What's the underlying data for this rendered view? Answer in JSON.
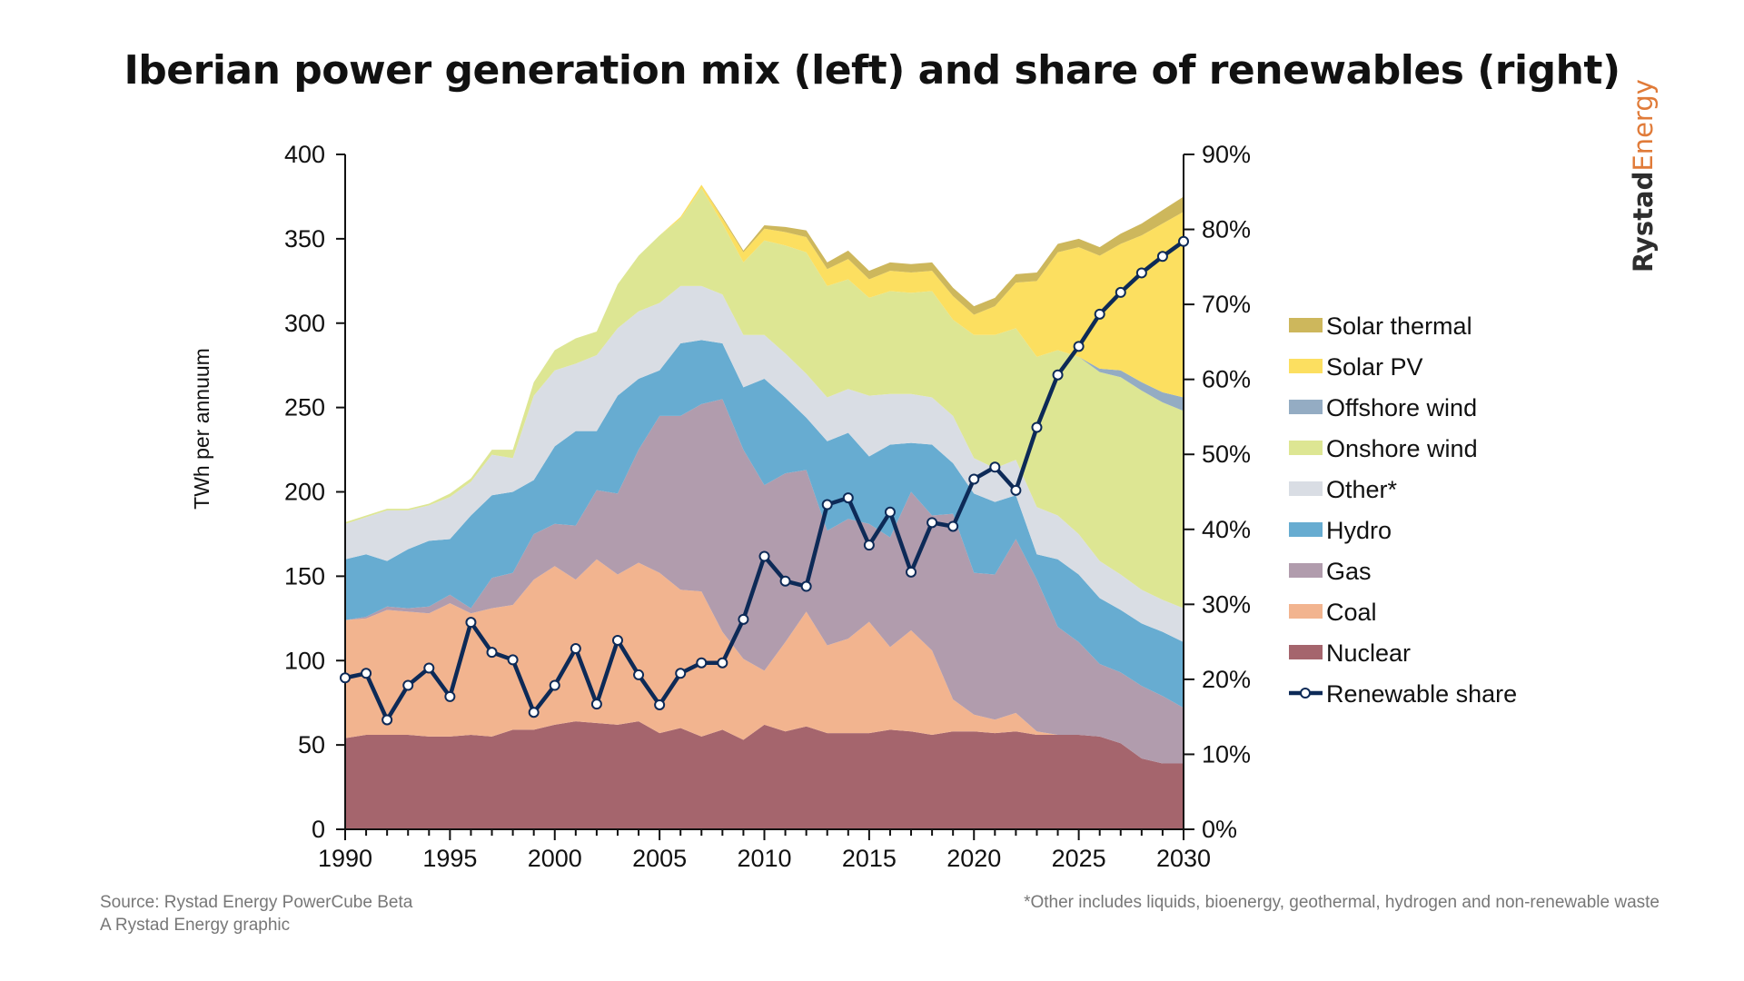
{
  "title": "Iberian power generation mix (left) and share of renewables (right)",
  "brand": {
    "part1": "Rystad",
    "part2": "Energy"
  },
  "footer": {
    "source": "Source: Rystad Energy PowerCube Beta",
    "credit": "A Rystad Energy graphic",
    "note": "*Other includes liquids, bioenergy, geothermal, hydrogen and non-renewable waste"
  },
  "chart_data": {
    "type": "area",
    "title": "Iberian power generation mix (left) and share of renewables (right)",
    "ylabel": "TWh per annuum",
    "xlabel": "",
    "x": [
      1990,
      1991,
      1992,
      1993,
      1994,
      1995,
      1996,
      1997,
      1998,
      1999,
      2000,
      2001,
      2002,
      2003,
      2004,
      2005,
      2006,
      2007,
      2008,
      2009,
      2010,
      2011,
      2012,
      2013,
      2014,
      2015,
      2016,
      2017,
      2018,
      2019,
      2020,
      2021,
      2022,
      2023,
      2024,
      2025,
      2026,
      2027,
      2028,
      2029,
      2030
    ],
    "xlim": [
      1990,
      2030
    ],
    "x_ticks": [
      1990,
      1995,
      2000,
      2005,
      2010,
      2015,
      2020,
      2025,
      2030
    ],
    "ylim": [
      0,
      400
    ],
    "y_ticks": [
      0,
      50,
      100,
      150,
      200,
      250,
      300,
      350,
      400
    ],
    "y2lim": [
      0,
      90
    ],
    "y2_ticks": [
      "0%",
      "10%",
      "20%",
      "30%",
      "40%",
      "50%",
      "60%",
      "70%",
      "80%",
      "90%"
    ],
    "legend_position": "right",
    "colors": {
      "Nuclear": "#a5656d",
      "Coal": "#f2b48f",
      "Gas": "#b19cad",
      "Hydro": "#67acd1",
      "Other*": "#d9dde4",
      "Onshore wind": "#dde693",
      "Offshore wind": "#94acc3",
      "Solar PV": "#fcdf60",
      "Solar thermal": "#cdb75c",
      "Renewable share": "#0d2a57"
    },
    "series": [
      {
        "name": "Nuclear",
        "values": [
          54,
          56,
          56,
          56,
          55,
          55,
          56,
          55,
          59,
          59,
          62,
          64,
          63,
          62,
          64,
          57,
          60,
          55,
          59,
          53,
          62,
          58,
          61,
          57,
          57,
          57,
          59,
          58,
          56,
          58,
          58,
          57,
          58,
          56,
          56,
          56,
          55,
          51,
          42,
          39,
          39
        ]
      },
      {
        "name": "Coal",
        "values": [
          70,
          69,
          74,
          73,
          73,
          79,
          72,
          76,
          74,
          89,
          94,
          84,
          97,
          89,
          94,
          95,
          82,
          86,
          58,
          48,
          32,
          53,
          68,
          52,
          56,
          66,
          49,
          60,
          50,
          19,
          10,
          8,
          11,
          2,
          0,
          0,
          0,
          0,
          0,
          0,
          0
        ]
      },
      {
        "name": "Gas",
        "values": [
          0,
          1,
          2,
          2,
          4,
          5,
          3,
          18,
          19,
          27,
          25,
          32,
          41,
          48,
          67,
          93,
          103,
          111,
          138,
          124,
          110,
          100,
          84,
          68,
          71,
          58,
          65,
          82,
          80,
          110,
          84,
          86,
          103,
          90,
          64,
          55,
          43,
          42,
          43,
          40,
          33
        ]
      },
      {
        "name": "Hydro",
        "values": [
          36,
          37,
          27,
          35,
          39,
          33,
          55,
          49,
          48,
          32,
          46,
          56,
          35,
          58,
          42,
          27,
          43,
          38,
          33,
          37,
          63,
          45,
          31,
          53,
          51,
          40,
          55,
          29,
          42,
          30,
          47,
          43,
          26,
          15,
          40,
          40,
          39,
          37,
          37,
          38,
          39
        ]
      },
      {
        "name": "Other*",
        "values": [
          21,
          22,
          30,
          23,
          21,
          25,
          20,
          24,
          20,
          50,
          45,
          40,
          45,
          40,
          40,
          40,
          34,
          32,
          29,
          31,
          26,
          26,
          26,
          26,
          26,
          36,
          30,
          29,
          28,
          28,
          21,
          20,
          21,
          28,
          26,
          24,
          22,
          21,
          20,
          19,
          20
        ]
      },
      {
        "name": "Onshore wind",
        "values": [
          1,
          1,
          1,
          1,
          1,
          2,
          2,
          3,
          5,
          8,
          12,
          15,
          14,
          26,
          33,
          40,
          40,
          58,
          42,
          43,
          56,
          64,
          72,
          66,
          65,
          58,
          61,
          60,
          63,
          57,
          73,
          79,
          78,
          89,
          98,
          105,
          112,
          117,
          118,
          117,
          117
        ]
      },
      {
        "name": "Offshore wind",
        "values": [
          0,
          0,
          0,
          0,
          0,
          0,
          0,
          0,
          0,
          0,
          0,
          0,
          0,
          0,
          0,
          0,
          0,
          0,
          0,
          0,
          0,
          0,
          0,
          0,
          0,
          0,
          0,
          0,
          0,
          0,
          0,
          0,
          0,
          0,
          0,
          0,
          2,
          4,
          5,
          6,
          8
        ]
      },
      {
        "name": "Solar PV",
        "values": [
          0,
          0,
          0,
          0,
          0,
          0,
          0,
          0,
          0,
          0,
          0,
          0,
          0,
          0,
          0,
          0,
          1,
          2,
          3,
          6,
          7,
          8,
          9,
          10,
          12,
          11,
          12,
          12,
          12,
          14,
          12,
          17,
          27,
          45,
          58,
          65,
          67,
          75,
          87,
          100,
          110
        ]
      },
      {
        "name": "Solar thermal",
        "values": [
          0,
          0,
          0,
          0,
          0,
          0,
          0,
          0,
          0,
          0,
          0,
          0,
          0,
          0,
          0,
          0,
          0,
          0,
          1,
          1,
          2,
          3,
          4,
          4,
          5,
          5,
          5,
          5,
          5,
          5,
          5,
          5,
          5,
          5,
          5,
          5,
          5,
          6,
          7,
          8,
          9
        ]
      }
    ],
    "line_series": {
      "name": "Renewable share",
      "axis": "right",
      "values": [
        20.2,
        20.8,
        14.6,
        19.2,
        21.5,
        17.7,
        27.6,
        23.6,
        22.6,
        15.6,
        19.2,
        24.1,
        16.7,
        25.2,
        20.6,
        16.6,
        20.8,
        22.2,
        22.2,
        28.0,
        36.4,
        33.1,
        32.4,
        43.3,
        44.2,
        37.9,
        42.3,
        34.3,
        40.9,
        40.4,
        46.7,
        48.3,
        45.2,
        53.6,
        60.6,
        64.4,
        68.7,
        71.6,
        74.2,
        76.4,
        78.4
      ]
    },
    "legend": [
      "Solar thermal",
      "Solar PV",
      "Offshore wind",
      "Onshore wind",
      "Other*",
      "Hydro",
      "Gas",
      "Coal",
      "Nuclear",
      "Renewable share"
    ]
  }
}
